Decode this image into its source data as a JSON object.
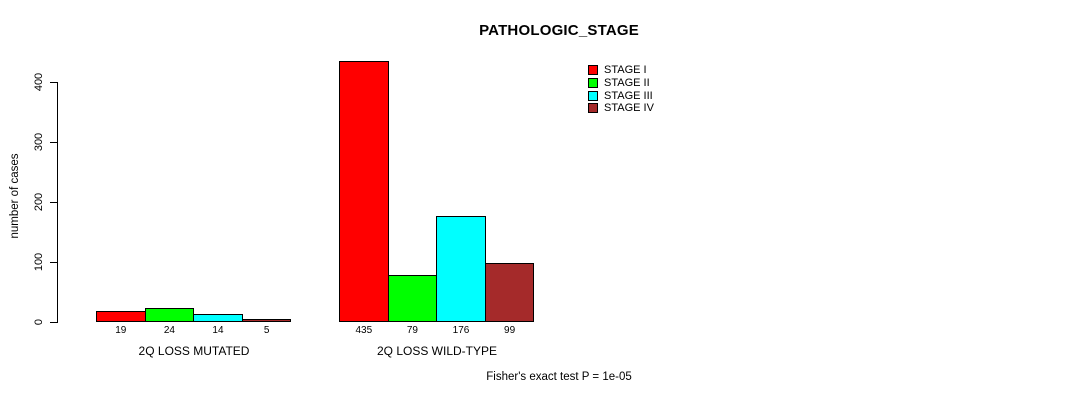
{
  "chart_data": {
    "type": "bar",
    "title": "PATHOLOGIC_STAGE",
    "xlabel": "",
    "ylabel": "number of cases",
    "ylim": [
      0,
      400
    ],
    "yticks": [
      0,
      100,
      200,
      300,
      400
    ],
    "grid": false,
    "legend_position": "top-right",
    "categories": [
      "2Q LOSS MUTATED",
      "2Q LOSS WILD-TYPE"
    ],
    "series": [
      {
        "name": "STAGE I",
        "color": "#FF0000",
        "values": [
          19,
          435
        ]
      },
      {
        "name": "STAGE II",
        "color": "#00FF00",
        "values": [
          24,
          79
        ]
      },
      {
        "name": "STAGE III",
        "color": "#00FFFF",
        "values": [
          14,
          176
        ]
      },
      {
        "name": "STAGE IV",
        "color": "#A52A2A",
        "values": [
          5,
          99
        ]
      }
    ],
    "bar_value_labels": {
      "2Q LOSS MUTATED": [
        19,
        24,
        14,
        5
      ],
      "2Q LOSS WILD-TYPE": [
        435,
        79,
        176,
        99
      ]
    },
    "annotation": "Fisher's exact test P = 1e-05"
  },
  "colors": {
    "background": "#FFFFFF",
    "axis": "#000000",
    "bar_border": "#000000",
    "stage_i": "#FF0000",
    "stage_ii": "#00FF00",
    "stage_iii": "#00FFFF",
    "stage_iv": "#A52A2A"
  }
}
